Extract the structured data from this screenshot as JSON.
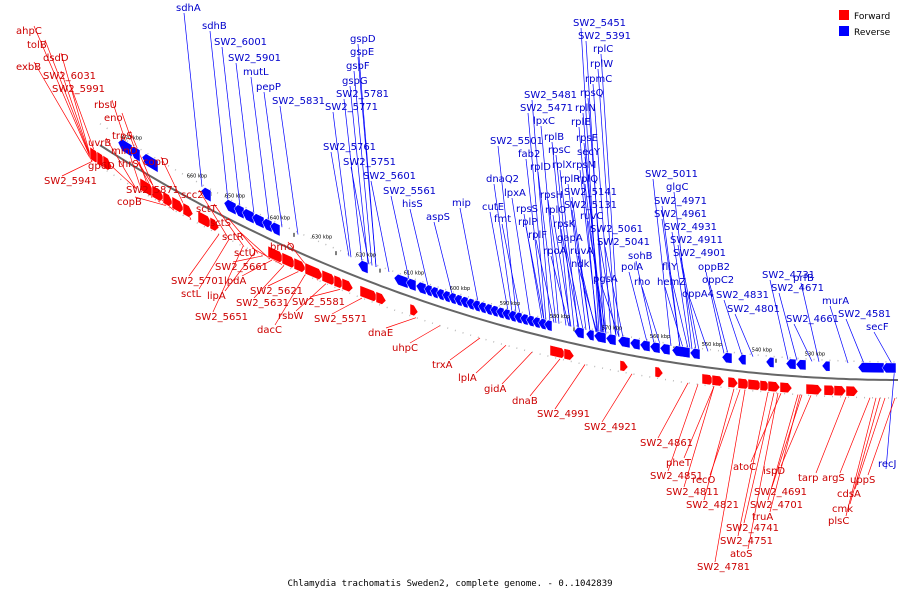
{
  "caption": "Chlamydia trachomatis Sweden2, complete genome. - 0..1042839",
  "legend": {
    "placement": "top-right",
    "items": [
      {
        "label": "Forward",
        "color": "#ff0000"
      },
      {
        "label": "Reverse",
        "color": "#0000ff"
      }
    ]
  },
  "colors": {
    "forward_gene": "#ff0000",
    "reverse_gene": "#0000ff",
    "forward_label": "#cc0000",
    "reverse_label": "#0000cc",
    "backbone": "#666666"
  },
  "kbp_labels": [
    "670 kbp",
    "660 kbp",
    "650 kbp",
    "640 kbp",
    "630 kbp",
    "620 kbp",
    "610 kbp",
    "600 kbp",
    "590 kbp",
    "580 kbp",
    "570 kbp",
    "560 kbp",
    "550 kbp",
    "540 kbp",
    "530 kbp"
  ],
  "forward_labels": [
    "ahpC",
    "tolB",
    "dsdD",
    "exbB",
    "SW2_6031",
    "SW2_5991",
    "rbsU",
    "eno",
    "trpS",
    "uvrB",
    "minD",
    "gp6D",
    "thrS",
    "copD",
    "SW2_5941",
    "SW2_5871",
    "copB",
    "scc2",
    "sctT",
    "sctS",
    "sctR",
    "sctU",
    "SW2_5661",
    "SW2_5701",
    "lpdA",
    "sctL",
    "lipA",
    "brnQ",
    "SW2_5621",
    "SW2_5631",
    "SW2_5581",
    "rsbW",
    "SW2_5651",
    "SW2_5571",
    "dacC",
    "dnaE",
    "uhpC",
    "trxA",
    "lplA",
    "gidA",
    "dnaB",
    "SW2_4991",
    "SW2_4921",
    "SW2_4861",
    "pheT",
    "SW2_4851",
    "recO",
    "SW2_4811",
    "SW2_4821",
    "atoC",
    "ispD",
    "SW2_4691",
    "SW2_4701",
    "truA",
    "SW2_4741",
    "SW2_4751",
    "atoS",
    "SW2_4781",
    "tarp",
    "argS",
    "uppS",
    "cdsA",
    "cmk",
    "plsC"
  ],
  "reverse_labels": [
    "sdhA",
    "sdhB",
    "SW2_6001",
    "SW2_5901",
    "mutL",
    "pepP",
    "gspD",
    "gspE",
    "gspF",
    "gspG",
    "SW2_5781",
    "SW2_5831",
    "SW2_5771",
    "SW2_5761",
    "SW2_5751",
    "SW2_5601",
    "SW2_5561",
    "hisS",
    "aspS",
    "mip",
    "SW2_5451",
    "SW2_5391",
    "rplC",
    "rplW",
    "rpmC",
    "rpsQ",
    "rplN",
    "rplE",
    "SW2_5481",
    "SW2_5471",
    "lpxC",
    "rplB",
    "rpsE",
    "SW2_5501",
    "fab2",
    "rpsC",
    "secY",
    "rplD",
    "rplX",
    "rpsM",
    "dnaQ2",
    "rplQ",
    "rplR",
    "rpsH",
    "lpxA",
    "SW2_5141",
    "cutE",
    "rpsS",
    "rplO",
    "SW2_5131",
    "fmt",
    "rplP",
    "ruvC",
    "rpsK",
    "rplF",
    "SW2_5061",
    "gapA",
    "SW2_5041",
    "rpoA",
    "ruvA",
    "ndk",
    "sohB",
    "polA",
    "pgsA",
    "rho",
    "SW2_5011",
    "glgC",
    "SW2_4971",
    "SW2_4961",
    "SW2_4931",
    "SW2_4911",
    "SW2_4901",
    "fliY",
    "oppB2",
    "hemZ",
    "oppC2",
    "oppA4",
    "SW2_4831",
    "SW2_4801",
    "SW2_4731",
    "SW2_4671",
    "prfB",
    "SW2_4661",
    "murA",
    "SW2_4581",
    "secF",
    "recJ"
  ]
}
